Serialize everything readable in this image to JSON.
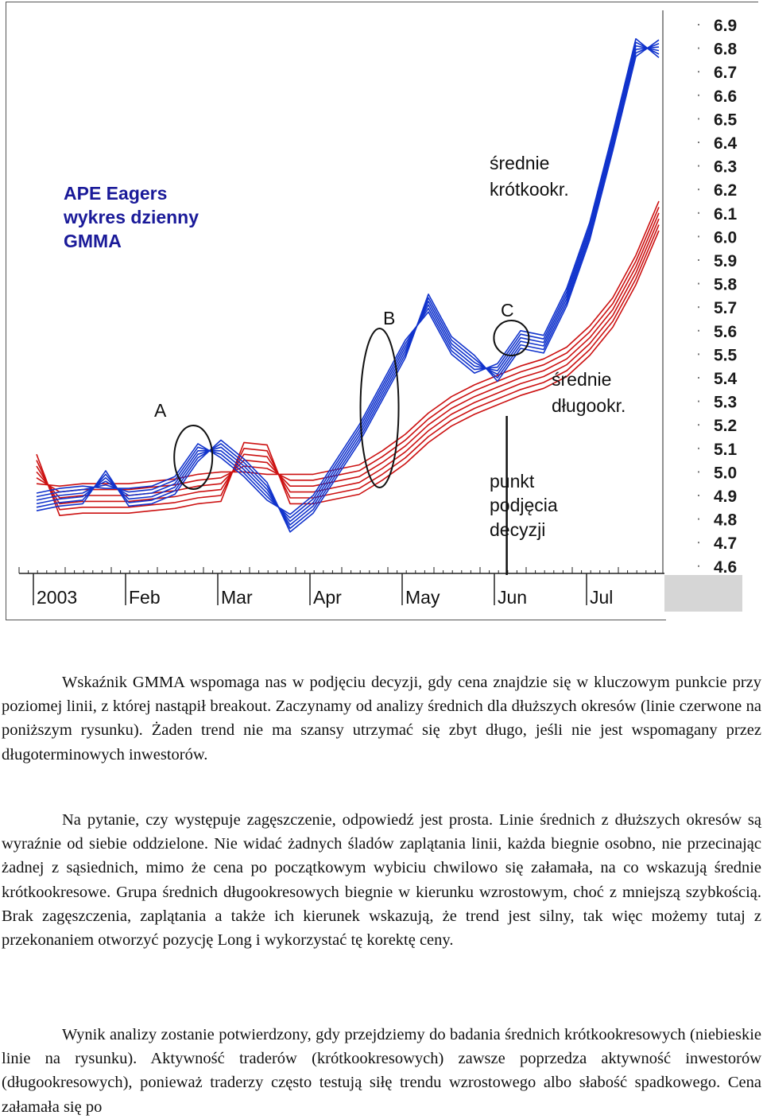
{
  "figure": {
    "title_lines": [
      "APE Eagers",
      "wykres dzienny",
      "GMMA"
    ],
    "annotations": {
      "short_label": [
        "średnie",
        "krótkookr."
      ],
      "long_label": [
        "średnie",
        "długookr."
      ],
      "decision_label": [
        "punkt",
        "podjęcia",
        "decyzji"
      ],
      "marker_a": "A",
      "marker_b": "B",
      "marker_c": "C"
    },
    "colors": {
      "short_term": "#1133cc",
      "long_term": "#cc1111",
      "accent_text": "#1a1a99"
    }
  },
  "chart_data": {
    "type": "line",
    "x_tick_labels": [
      "2003",
      "Feb",
      "Mar",
      "Apr",
      "May",
      "Jun",
      "Jul"
    ],
    "y_tick_labels": [
      "6.9",
      "6.8",
      "6.7",
      "6.6",
      "6.5",
      "6.4",
      "6.3",
      "6.2",
      "6.1",
      "6.0",
      "5.9",
      "5.8",
      "5.7",
      "5.6",
      "5.5",
      "5.4",
      "5.3",
      "5.2",
      "5.1",
      "5.0",
      "4.9",
      "4.8",
      "4.7",
      "4.6"
    ],
    "ylim": [
      4.6,
      6.9
    ],
    "x": [
      0.0,
      0.25,
      0.5,
      0.75,
      1.0,
      1.25,
      1.5,
      1.75,
      2.0,
      2.25,
      2.5,
      2.75,
      3.0,
      3.25,
      3.5,
      3.75,
      4.0,
      4.25,
      4.5,
      4.75,
      5.0,
      5.25,
      5.5,
      5.75,
      6.0,
      6.25,
      6.5,
      6.75
    ],
    "short_term_averages": [
      4.91,
      4.93,
      4.94,
      4.93,
      4.93,
      4.94,
      4.98,
      5.12,
      5.06,
      4.98,
      4.88,
      4.82,
      4.9,
      5.05,
      5.2,
      5.38,
      5.56,
      5.68,
      5.5,
      5.42,
      5.46,
      5.6,
      5.58,
      5.78,
      6.06,
      6.44,
      6.84,
      6.76
    ],
    "long_term_averages": [
      4.95,
      4.94,
      4.95,
      4.95,
      4.95,
      4.96,
      4.97,
      4.99,
      5.0,
      5.0,
      4.99,
      4.99,
      4.99,
      5.01,
      5.03,
      5.09,
      5.16,
      5.25,
      5.32,
      5.37,
      5.41,
      5.45,
      5.48,
      5.53,
      5.62,
      5.74,
      5.92,
      6.15
    ],
    "short_spreads": [
      0,
      0.015,
      0.03,
      0.045,
      0.06,
      0.075
    ],
    "long_spreads": [
      0,
      0.025,
      0.05,
      0.075,
      0.1,
      0.125
    ],
    "decision_x": 5.1,
    "marker_positions": {
      "A": 1.7,
      "B": 3.72,
      "C": 5.15
    }
  },
  "paragraphs": [
    "Wskaźnik GMMA wspomaga nas w podjęciu decyzji, gdy cena znajdzie się w kluczowym punkcie przy poziomej linii, z której nastąpił breakout. Zaczynamy od analizy średnich dla dłuższych okresów (linie czerwone na poniższym rysunku). Żaden trend nie ma szansy utrzymać się zbyt długo, jeśli nie jest wspomagany przez długoterminowych inwestorów.",
    "Na pytanie, czy występuje zagęszczenie, odpowiedź jest prosta. Linie średnich z dłuższych okresów są wyraźnie od siebie oddzielone. Nie widać żadnych śladów zaplątania linii, każda biegnie osobno, nie przecinając żadnej z sąsiednich, mimo że cena po początkowym wybiciu chwilowo się załamała, na co wskazują średnie krótkookresowe. Grupa średnich długookresowych biegnie w kierunku wzrostowym, choć z mniejszą szybkością. Brak zagęszczenia, zaplątania a także ich kierunek wskazują, że trend jest silny, tak więc możemy tutaj z przekonaniem otworzyć pozycję Long i wykorzystać tę korektę ceny.",
    "Wynik analizy zostanie potwierdzony, gdy przejdziemy do badania średnich krótkookresowych (niebieskie linie na rysunku). Aktywność traderów (krótkookresowych) zawsze poprzedza aktywność inwestorów (długookresowych), ponieważ traderzy często testują siłę trendu wzrostowego albo słabość spadkowego. Cena załamała się po"
  ]
}
